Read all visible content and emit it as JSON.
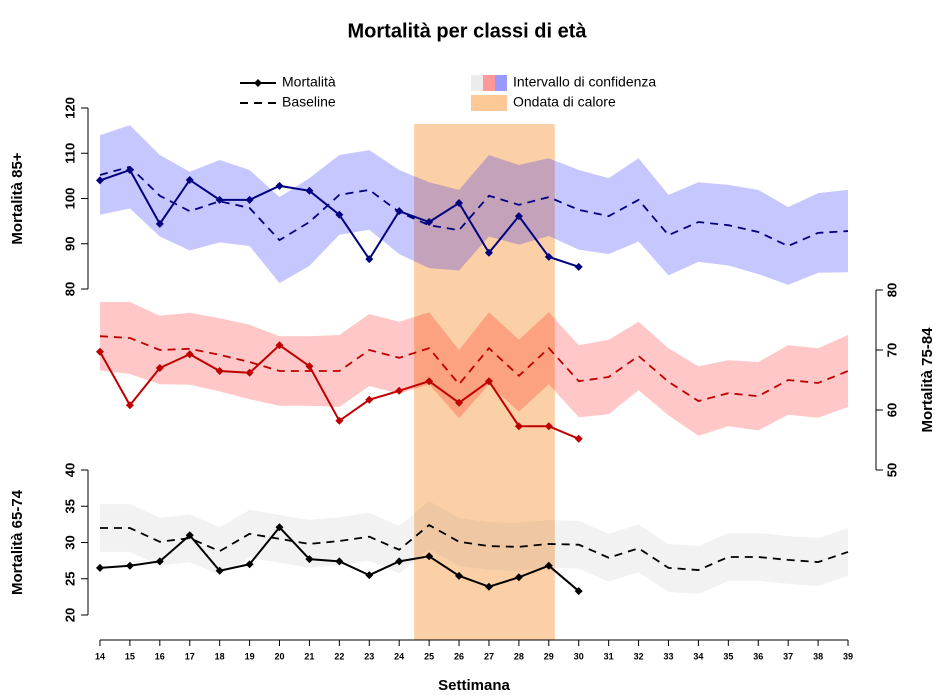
{
  "chart_data": {
    "type": "line",
    "title": "Mortalità per classi di età",
    "xlabel": "Settimana",
    "x": [
      14,
      15,
      16,
      17,
      18,
      19,
      20,
      21,
      22,
      23,
      24,
      25,
      26,
      27,
      28,
      29,
      30,
      31,
      32,
      33,
      34,
      35,
      36,
      37,
      38,
      39
    ],
    "xlim": [
      13.6,
      39.4
    ],
    "xticks": [
      14,
      15,
      16,
      17,
      18,
      19,
      20,
      21,
      22,
      23,
      24,
      25,
      26,
      27,
      28,
      29,
      30,
      31,
      32,
      33,
      34,
      35,
      36,
      37,
      38,
      39
    ],
    "legend": {
      "mortality": "Mortalità",
      "baseline": "Baseline",
      "ci": "Intervallo di confidenza"
    },
    "heatwave": {
      "label": "Ondata di calore",
      "start": 24.5,
      "end": 29.2,
      "color": "#fbc896"
    },
    "panels": [
      {
        "name": "Mortalità 85+",
        "side": "left",
        "ylim": [
          80,
          120
        ],
        "yticks": [
          80,
          90,
          100,
          110,
          120
        ],
        "color": "#000080",
        "ci_color": "#0000ff",
        "mortality": [
          104,
          106.3,
          94.4,
          104.1,
          99.7,
          99.7,
          102.8,
          101.7,
          96.4,
          86.6,
          97.2,
          94.8,
          99,
          88,
          96.1,
          87.1,
          84.9,
          null,
          null,
          null,
          null,
          null,
          null,
          null,
          null,
          null
        ],
        "baseline": [
          105.2,
          107,
          100.6,
          97.2,
          99.4,
          97.9,
          90.8,
          94.8,
          100.8,
          101.9,
          97,
          94.1,
          93,
          100.6,
          98.6,
          100.3,
          97.5,
          96.1,
          99.7,
          91.9,
          94.8,
          94.1,
          92.6,
          89.5,
          92.4,
          92.8
        ],
        "ci_upper": [
          114,
          116.2,
          109.6,
          105.9,
          108.5,
          106.3,
          100.3,
          104.5,
          109.6,
          110.7,
          106.3,
          103.6,
          101.9,
          109.6,
          107.4,
          108.9,
          106.3,
          104.5,
          108.9,
          100.8,
          103.6,
          103,
          101.9,
          98.1,
          101.2,
          101.9
        ],
        "ci_lower": [
          96.4,
          97.8,
          91.6,
          88.5,
          90.3,
          89.5,
          81.3,
          85.1,
          92,
          93.1,
          87.7,
          84.6,
          84.1,
          91.6,
          89.8,
          91.7,
          88.7,
          87.7,
          90.5,
          83,
          86,
          85.2,
          83.3,
          80.9,
          83.6,
          83.7
        ]
      },
      {
        "name": "Mortalità 75-84",
        "side": "right",
        "ylim": [
          50,
          80
        ],
        "yticks": [
          50,
          60,
          70,
          80
        ],
        "color": "#c00000",
        "ci_color": "#ff0000",
        "mortality": [
          69.7,
          60.8,
          67,
          69.3,
          66.5,
          66.2,
          70.8,
          67.3,
          58.2,
          61.7,
          63.2,
          64.8,
          61.2,
          64.8,
          57.3,
          57.3,
          55.2,
          null,
          null,
          null,
          null,
          null,
          null,
          null,
          null,
          null
        ],
        "baseline": [
          72.3,
          72,
          70,
          70.2,
          69.2,
          68,
          66.5,
          66.5,
          66.5,
          70,
          68.7,
          70.3,
          64.3,
          70.3,
          65.7,
          70.3,
          64.8,
          65.5,
          69,
          64.7,
          61.5,
          62.8,
          62.3,
          65,
          64.5,
          66.5
        ],
        "ci_upper": [
          78,
          78,
          75.7,
          76.2,
          75.3,
          74.2,
          72.3,
          72.3,
          72.5,
          76,
          74.7,
          76.3,
          70,
          76.3,
          71.7,
          76.3,
          70.8,
          71.7,
          74.7,
          70.3,
          67.3,
          68.3,
          68,
          70.8,
          70.3,
          72.5
        ],
        "ci_lower": [
          66.6,
          66,
          64.3,
          64.2,
          63.1,
          61.8,
          60.7,
          60.7,
          60.5,
          64,
          62.7,
          64.3,
          58.6,
          64.3,
          59.7,
          64.3,
          58.8,
          59.3,
          63.3,
          59.1,
          55.7,
          57.3,
          56.6,
          59.2,
          58.7,
          60.5
        ]
      },
      {
        "name": "Mortalità 65-74",
        "side": "left",
        "ylim": [
          20,
          40
        ],
        "yticks": [
          20,
          25,
          30,
          35,
          40
        ],
        "color": "#000000",
        "ci_color": "#808080",
        "mortality": [
          26.5,
          26.8,
          27.4,
          31,
          26.1,
          27,
          32.1,
          27.7,
          27.4,
          25.5,
          27.4,
          28.1,
          25.4,
          23.9,
          25.2,
          26.8,
          23.3,
          null,
          null,
          null,
          null,
          null,
          null,
          null,
          null,
          null
        ],
        "baseline": [
          32,
          32,
          30.1,
          30.6,
          28.8,
          31.2,
          30.5,
          29.8,
          30.2,
          30.8,
          29,
          32.4,
          30.1,
          29.5,
          29.4,
          29.8,
          29.7,
          27.9,
          29.2,
          26.5,
          26.2,
          28,
          28,
          27.6,
          27.3,
          28.7
        ],
        "ci_upper": [
          35.3,
          35.3,
          33.4,
          33.9,
          32.1,
          34.5,
          33.8,
          33.1,
          33.5,
          34.1,
          32.3,
          35.7,
          33.4,
          32.8,
          32.7,
          33.1,
          33,
          31.2,
          32.5,
          29.8,
          29.5,
          31.3,
          31.3,
          30.9,
          30.6,
          32
        ],
        "ci_lower": [
          28.7,
          28.7,
          26.8,
          27.3,
          25.5,
          27.9,
          27.2,
          26.5,
          26.9,
          27.5,
          25.7,
          29.1,
          26.8,
          26.2,
          26.1,
          26.5,
          26.4,
          24.6,
          25.9,
          23.2,
          22.9,
          24.7,
          24.7,
          24.3,
          24,
          25.4
        ]
      }
    ]
  }
}
